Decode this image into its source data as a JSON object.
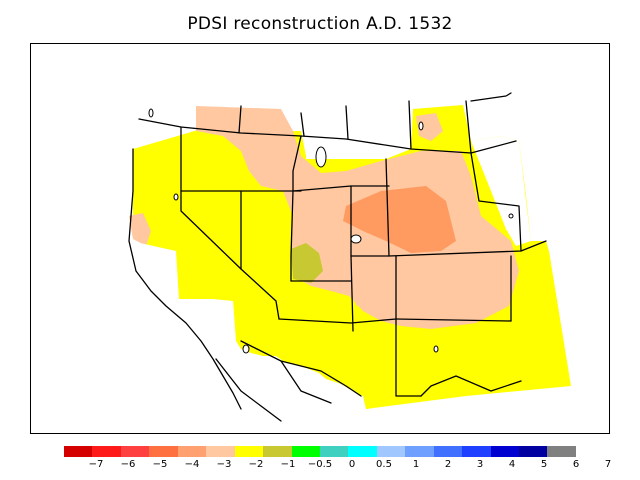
{
  "title": "PDSI reconstruction A.D. 1532",
  "legend": {
    "colors": [
      "#d40000",
      "#ff1a1a",
      "#ff4040",
      "#ff7040",
      "#ffa070",
      "#ffc8a0",
      "#ffff00",
      "#c8c832",
      "#00ff00",
      "#40d0c0",
      "#00ffff",
      "#a0c8ff",
      "#70a0ff",
      "#4070ff",
      "#2040ff",
      "#0000d0",
      "#0000a0",
      "#808080"
    ],
    "labels": [
      "−7",
      "−6",
      "−5",
      "−4",
      "−3",
      "−2",
      "−1",
      "−0.5",
      "0",
      "0.5",
      "1",
      "2",
      "3",
      "4",
      "5",
      "6",
      "7"
    ]
  },
  "fill_colors": {
    "yellow": "#ffff00",
    "peach": "#ffc8a0",
    "orange": "#ff9a60",
    "olive": "#c8c832",
    "white": "#ffffff"
  }
}
